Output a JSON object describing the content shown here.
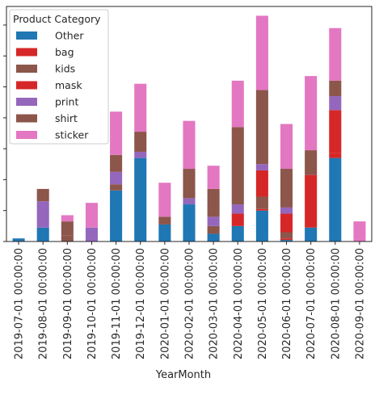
{
  "chart_data": {
    "type": "bar",
    "stacked": true,
    "title": "",
    "xlabel": "YearMonth",
    "ylabel": "",
    "ylim": [
      0,
      76
    ],
    "categories": [
      "2019-07-01 00:00:00",
      "2019-08-01 00:00:00",
      "2019-09-01 00:00:00",
      "2019-10-01 00:00:00",
      "2019-11-01 00:00:00",
      "2019-12-01 00:00:00",
      "2020-01-01 00:00:00",
      "2020-02-01 00:00:00",
      "2020-03-01 00:00:00",
      "2020-04-01 00:00:00",
      "2020-05-01 00:00:00",
      "2020-06-01 00:00:00",
      "2020-07-01 00:00:00",
      "2020-08-01 00:00:00",
      "2020-09-01 00:00:00"
    ],
    "series": [
      {
        "name": "Other",
        "color": "#1f77b4",
        "values": [
          1,
          4.5,
          0,
          0,
          16.5,
          27,
          5.5,
          12,
          2.5,
          5,
          10,
          0.5,
          4.5,
          27,
          0
        ]
      },
      {
        "name": "bag",
        "color": "#d62728",
        "values": [
          0,
          0,
          0,
          0,
          0,
          0,
          0,
          0,
          0,
          0,
          0.5,
          0.5,
          0,
          1.5,
          0
        ]
      },
      {
        "name": "kids",
        "color": "#8c564b",
        "values": [
          0,
          0,
          2,
          0,
          2,
          0,
          0,
          0,
          2.5,
          0,
          4,
          2,
          0,
          0,
          0
        ]
      },
      {
        "name": "mask",
        "color": "#d62728",
        "values": [
          0,
          0,
          0,
          0,
          0,
          0,
          0,
          0,
          0,
          4,
          8.5,
          6,
          17,
          14,
          0
        ]
      },
      {
        "name": "print",
        "color": "#9467bd",
        "values": [
          0,
          8.5,
          0,
          4.5,
          4,
          2,
          0,
          2,
          3,
          3,
          2,
          2,
          0,
          4.5,
          0
        ]
      },
      {
        "name": "shirt",
        "color": "#8c564b",
        "values": [
          0,
          4,
          4.5,
          0,
          5.5,
          6.5,
          2.5,
          9.5,
          9,
          25,
          24,
          12.5,
          8,
          5,
          0
        ]
      },
      {
        "name": "sticker",
        "color": "#e377c2",
        "values": [
          0,
          0,
          2,
          8,
          14,
          15.5,
          11,
          15.5,
          7.5,
          15,
          24,
          14.5,
          24,
          17,
          6.5
        ]
      }
    ],
    "legend": {
      "title": "Product Category",
      "position": "top-left"
    }
  }
}
